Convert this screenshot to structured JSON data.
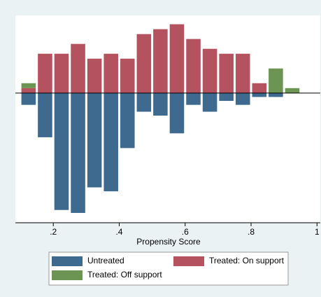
{
  "chart_data": {
    "type": "histogram",
    "xlabel": "Propensity Score",
    "bins": [
      0.1,
      0.15,
      0.2,
      0.25,
      0.3,
      0.35,
      0.4,
      0.45,
      0.5,
      0.55,
      0.6,
      0.65,
      0.7,
      0.75,
      0.8,
      0.85,
      0.9,
      0.95
    ],
    "series": [
      {
        "name": "Untreated",
        "color": "#3f6a8f",
        "values": [
          -1.2,
          -4.5,
          -11.9,
          -12.2,
          -9.6,
          -10,
          -5.6,
          -1.9,
          -2.3,
          -4.1,
          -1.2,
          -1.9,
          -0.8,
          -1.2,
          -0.4,
          -0.4,
          0
        ]
      },
      {
        "name": "Treated: On support",
        "color": "#b5525f",
        "values": [
          0.5,
          4,
          4,
          5,
          3.5,
          4,
          3.5,
          6,
          6.5,
          7,
          5.5,
          4.5,
          4,
          4,
          1,
          0,
          0
        ]
      },
      {
        "name": "Treated: Off support",
        "color": "#6c9452",
        "values": [
          0.5,
          0,
          0,
          0,
          0,
          0,
          0,
          0,
          0,
          0,
          0,
          0,
          0,
          0,
          0,
          2.5,
          0.5
        ]
      }
    ],
    "xlim": [
      0.085,
      1.01
    ],
    "ylim": [
      -13.2,
      7.9
    ],
    "xticks": [
      {
        "value": 0.2,
        "label": ".2"
      },
      {
        "value": 0.4,
        "label": ".4"
      },
      {
        "value": 0.6,
        "label": ".6"
      },
      {
        "value": 0.8,
        "label": ".8"
      },
      1
    ],
    "legend": "bottom"
  }
}
